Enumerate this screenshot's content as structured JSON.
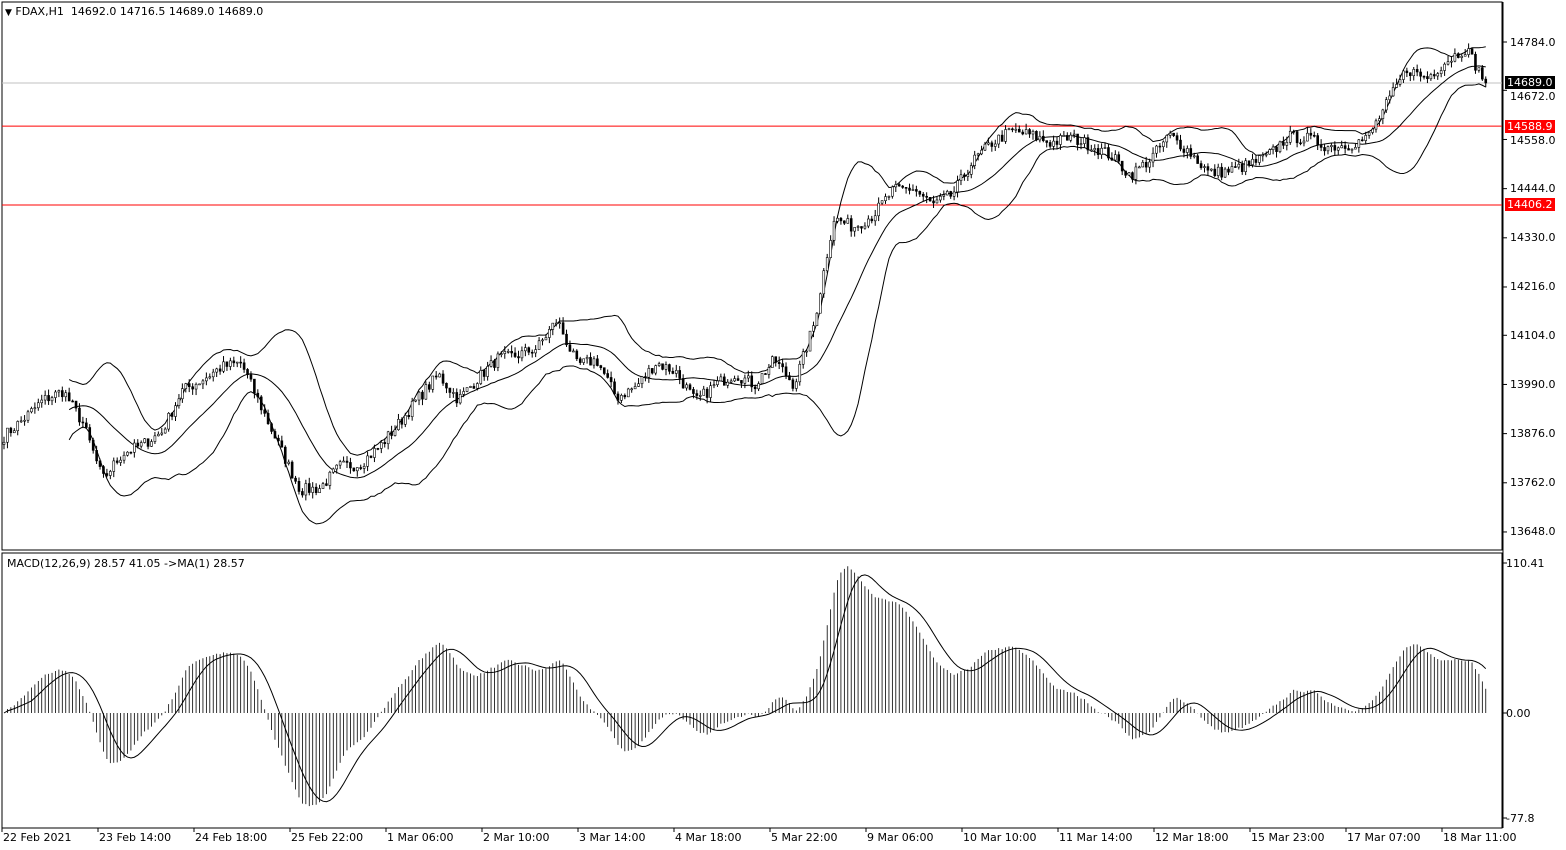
{
  "header": {
    "symbol": "FDAX,H1",
    "ohlc": "14692.0 14716.5 14689.0 14689.0"
  },
  "macd_header": "MACD(12,26,9) 28.57 41.05  ->MA(1) 28.57",
  "colors": {
    "background": "#ffffff",
    "foreground": "#000000",
    "level_line": "#ff0000",
    "bid_line": "#c0c0c0",
    "bid_tag": "#000000"
  },
  "chart_data": [
    {
      "type": "candlestick",
      "title": "FDAX,H1",
      "ylim": [
        13600,
        14830
      ],
      "y_ticks": [
        "14784.0",
        "14672.0",
        "14558.0",
        "14444.0",
        "14330.0",
        "14216.0",
        "14104.0",
        "13990.0",
        "13876.0",
        "13762.0",
        "13648.0"
      ],
      "x_ticks": [
        "22 Feb 2021",
        "23 Feb 14:00",
        "24 Feb 18:00",
        "25 Feb 22:00",
        "1 Mar 06:00",
        "2 Mar 10:00",
        "3 Mar 14:00",
        "4 Mar 18:00",
        "5 Mar 22:00",
        "9 Mar 06:00",
        "10 Mar 10:00",
        "11 Mar 14:00",
        "12 Mar 18:00",
        "15 Mar 23:00",
        "17 Mar 07:00",
        "18 Mar 11:00"
      ],
      "close_path": [
        13870,
        13910,
        13954,
        13975,
        13900,
        13770,
        13830,
        13850,
        13880,
        13975,
        14000,
        14030,
        14040,
        13940,
        13840,
        13745,
        13750,
        13800,
        13805,
        13845,
        13900,
        13960,
        14012,
        13955,
        14005,
        14050,
        14058,
        14075,
        14140,
        14035,
        14047,
        13960,
        13985,
        14040,
        14020,
        13950,
        13989,
        14015,
        13989,
        14047,
        13989,
        14130,
        14375,
        14355,
        14383,
        14440,
        14445,
        14406,
        14430,
        14505,
        14550,
        14578,
        14568,
        14550,
        14563,
        14545,
        14522,
        14475,
        14511,
        14568,
        14530,
        14480,
        14485,
        14499,
        14520,
        14565,
        14560,
        14542,
        14545,
        14560,
        14640,
        14722,
        14700,
        14740,
        14770,
        14689
      ],
      "indicators": [
        "Bollinger Bands"
      ],
      "levels": [
        {
          "value": 14588.9,
          "label": "14588.9",
          "color": "#ff0000"
        },
        {
          "value": 14406.2,
          "label": "14406.2",
          "color": "#ff0000"
        }
      ],
      "bid": {
        "value": 14689.0,
        "label": "14689.0"
      },
      "grid": false
    },
    {
      "type": "macd",
      "title": "MACD(12,26,9)",
      "ylim": [
        -77.8,
        110.41
      ],
      "y_ticks": [
        "110.41",
        "0.00",
        "-77.8"
      ],
      "params": [
        12,
        26,
        9
      ],
      "values": {
        "macd": 28.57,
        "signal": 41.05,
        "ma": 28.57
      }
    }
  ]
}
